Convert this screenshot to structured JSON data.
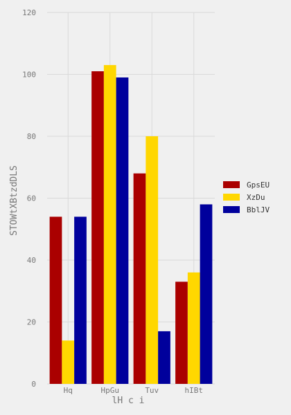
{
  "chart_data": {
    "type": "bar",
    "title": "",
    "xlabel": "lH c i",
    "ylabel": "STOWtXBtzdDLS",
    "categories": [
      "Hq",
      "HpGu",
      "Tuv",
      "hIBt"
    ],
    "series": [
      {
        "name": "GpsEU",
        "color": "#aa0000",
        "values": [
          54,
          101,
          68,
          33
        ]
      },
      {
        "name": "XzDu",
        "color": "#ffd700",
        "values": [
          14,
          103,
          80,
          36
        ]
      },
      {
        "name": "BblJV",
        "color": "#00009c",
        "values": [
          54,
          99,
          17,
          58
        ]
      }
    ],
    "ylim": [
      0,
      120
    ],
    "yticks": [
      0,
      20,
      40,
      60,
      80,
      100,
      120
    ],
    "grid": true,
    "legend_position": "right"
  }
}
